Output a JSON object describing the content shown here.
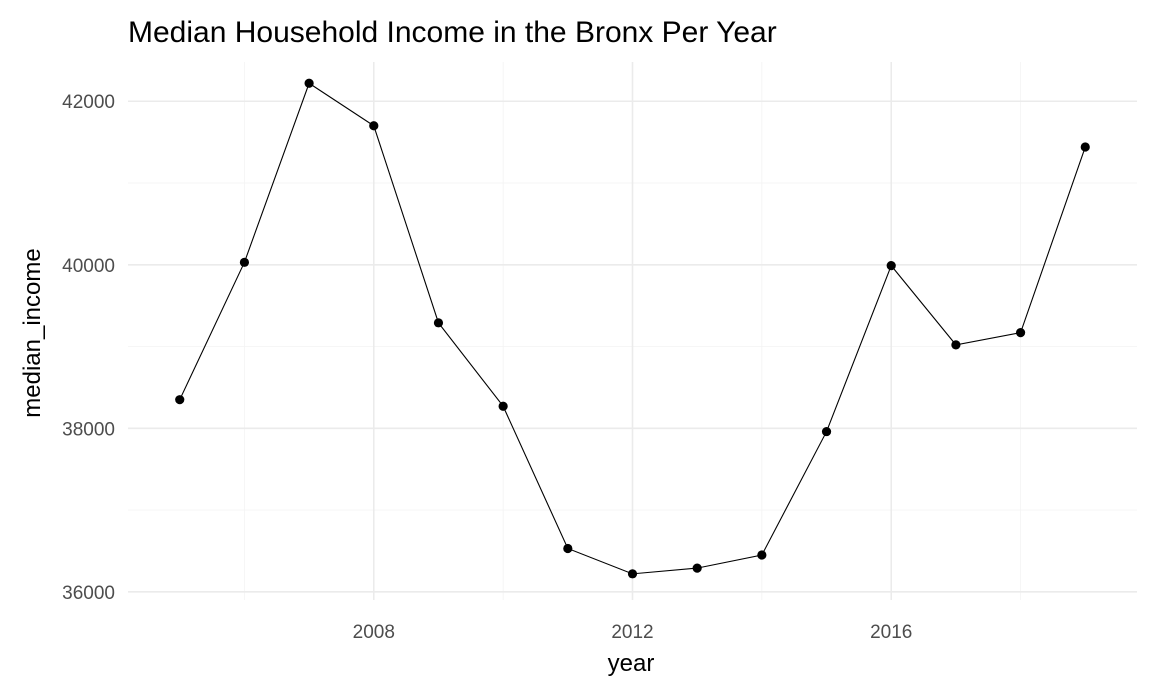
{
  "chart_data": {
    "type": "line",
    "title": "Median Household Income in the Bronx Per Year",
    "xlabel": "year",
    "ylabel": "median_income",
    "x": [
      2005,
      2006,
      2007,
      2008,
      2009,
      2010,
      2011,
      2012,
      2013,
      2014,
      2015,
      2016,
      2017,
      2018,
      2019
    ],
    "series": [
      {
        "values": [
          38350,
          40030,
          42220,
          41700,
          39290,
          38270,
          36530,
          36220,
          36290,
          36450,
          37960,
          39990,
          39020,
          39170,
          41440
        ],
        "color": "#000000"
      }
    ],
    "xlim": [
      2004.2,
      2019.8
    ],
    "ylim": [
      35900,
      42480
    ],
    "x_ticks": [
      2008,
      2012,
      2016
    ],
    "x_tick_labels": [
      "2008",
      "2012",
      "2016"
    ],
    "x_minor_ticks": [
      2006,
      2010,
      2014,
      2018
    ],
    "y_ticks": [
      36000,
      38000,
      40000,
      42000
    ],
    "y_tick_labels": [
      "36000",
      "38000",
      "40000",
      "42000"
    ],
    "y_minor_ticks": [
      37000,
      39000,
      41000
    ],
    "grid": true,
    "theme": "minimal"
  }
}
